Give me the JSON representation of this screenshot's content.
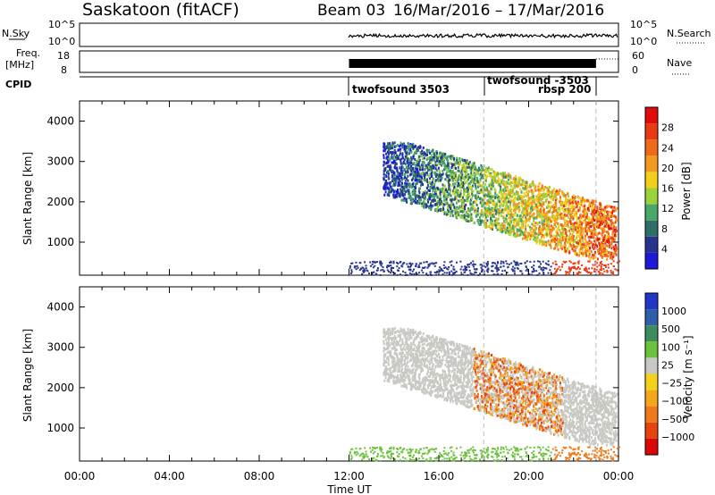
{
  "header": {
    "station": "Saskatoon (fitACF)",
    "beam": "Beam 03",
    "date_range": "16/Mar/2016 – 17/Mar/2016"
  },
  "top_panels": {
    "nsky_label": "N.Sky",
    "nsky_ticks": [
      "10^5",
      "10^0"
    ],
    "nsky_right_ticks": [
      "10^5",
      "10^0"
    ],
    "nsearch_label": "N.Search",
    "freq_label_1": "Freq.",
    "freq_label_2": "[MHz]",
    "freq_ticks": [
      "18",
      "8"
    ],
    "nave_ticks": [
      "60",
      "0"
    ],
    "nave_label": "Nave",
    "cpid_label": "CPID",
    "cpid_entries": [
      "twofsound 3503",
      "twofsound -3503",
      "rbsp 200"
    ]
  },
  "chart_data": [
    {
      "type": "heatmap",
      "title": "",
      "xlabel": "",
      "ylabel": "Slant Range [km]",
      "x_ticks": [
        "00:00",
        "04:00",
        "08:00",
        "12:00",
        "16:00",
        "20:00",
        "00:00"
      ],
      "x_range_hours": [
        0,
        24
      ],
      "y_ticks": [
        1000,
        2000,
        3000,
        4000
      ],
      "ylim": [
        180,
        4500
      ],
      "colorbar": {
        "label": "Power [dB]",
        "ticks": [
          "4",
          "8",
          "12",
          "16",
          "20",
          "24",
          "28"
        ],
        "colors": [
          "#1e18d8",
          "#27348f",
          "#2f6f6a",
          "#48a868",
          "#9bd13a",
          "#f2cf1a",
          "#f29a1e",
          "#ef6b1a",
          "#e83a14",
          "#e00c0c"
        ]
      },
      "data_window_hours": [
        12.0,
        24.0
      ]
    },
    {
      "type": "heatmap",
      "title": "",
      "xlabel": "Time UT",
      "ylabel": "Slant Range [km]",
      "x_ticks": [
        "00:00",
        "04:00",
        "08:00",
        "12:00",
        "16:00",
        "20:00",
        "00:00"
      ],
      "x_range_hours": [
        0,
        24
      ],
      "y_ticks": [
        1000,
        2000,
        3000,
        4000
      ],
      "ylim": [
        180,
        4500
      ],
      "colorbar": {
        "label": "Velocity [m s⁻¹]",
        "ticks": [
          "1000",
          "500",
          "100",
          "25",
          "−25",
          "−100",
          "−500",
          "−1000"
        ],
        "colors": [
          "#2138c6",
          "#2f5fa8",
          "#3d8c5e",
          "#6cc23a",
          "#c9c9c4",
          "#f4d21a",
          "#f3a81c",
          "#ef7a1a",
          "#e6440f",
          "#dc0808"
        ]
      },
      "data_window_hours": [
        12.0,
        24.0
      ]
    }
  ]
}
